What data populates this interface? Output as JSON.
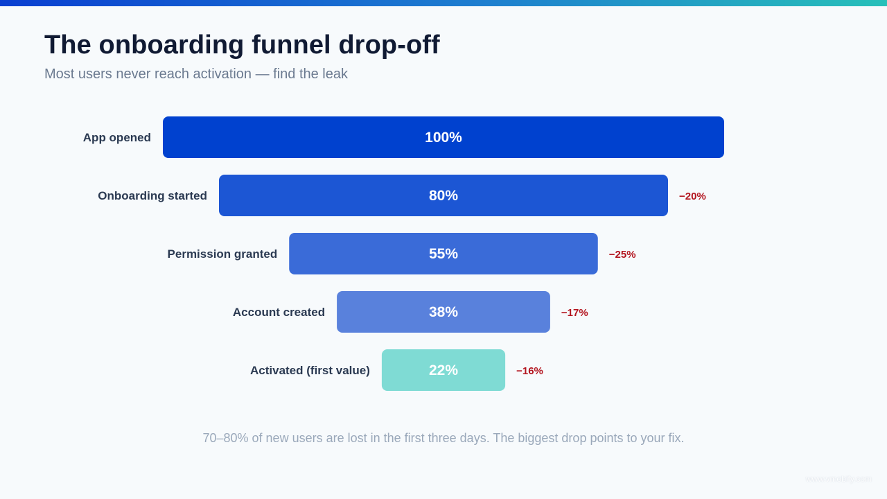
{
  "header": {
    "title": "The onboarding funnel drop-off",
    "subtitle": "Most users never reach activation — find the leak"
  },
  "colors": {
    "background": "#f7fafc",
    "title": "#101a33",
    "subtitle": "#6b7a90",
    "label": "#2b3a52",
    "drop": "#b3151f",
    "footnote": "#9aa8ba",
    "bars": [
      "#0041cf",
      "#1c56d4",
      "#3a6bd8",
      "#5981dc",
      "#7fdbd4"
    ]
  },
  "chart_data": {
    "type": "bar",
    "orientation": "horizontal-funnel",
    "categories": [
      "App opened",
      "Onboarding started",
      "Permission granted",
      "Account created",
      "Activated (first value)"
    ],
    "values": [
      100,
      80,
      55,
      38,
      22
    ],
    "value_labels": [
      "100%",
      "80%",
      "55%",
      "38%",
      "22%"
    ],
    "drop_labels": [
      "",
      "−20%",
      "−25%",
      "−17%",
      "−16%"
    ],
    "unit": "%",
    "xlim": [
      0,
      100
    ]
  },
  "footnote": "70–80% of new users are lost in the first three days. The biggest drop points to your fix.",
  "watermark": "www.vmobify.com"
}
